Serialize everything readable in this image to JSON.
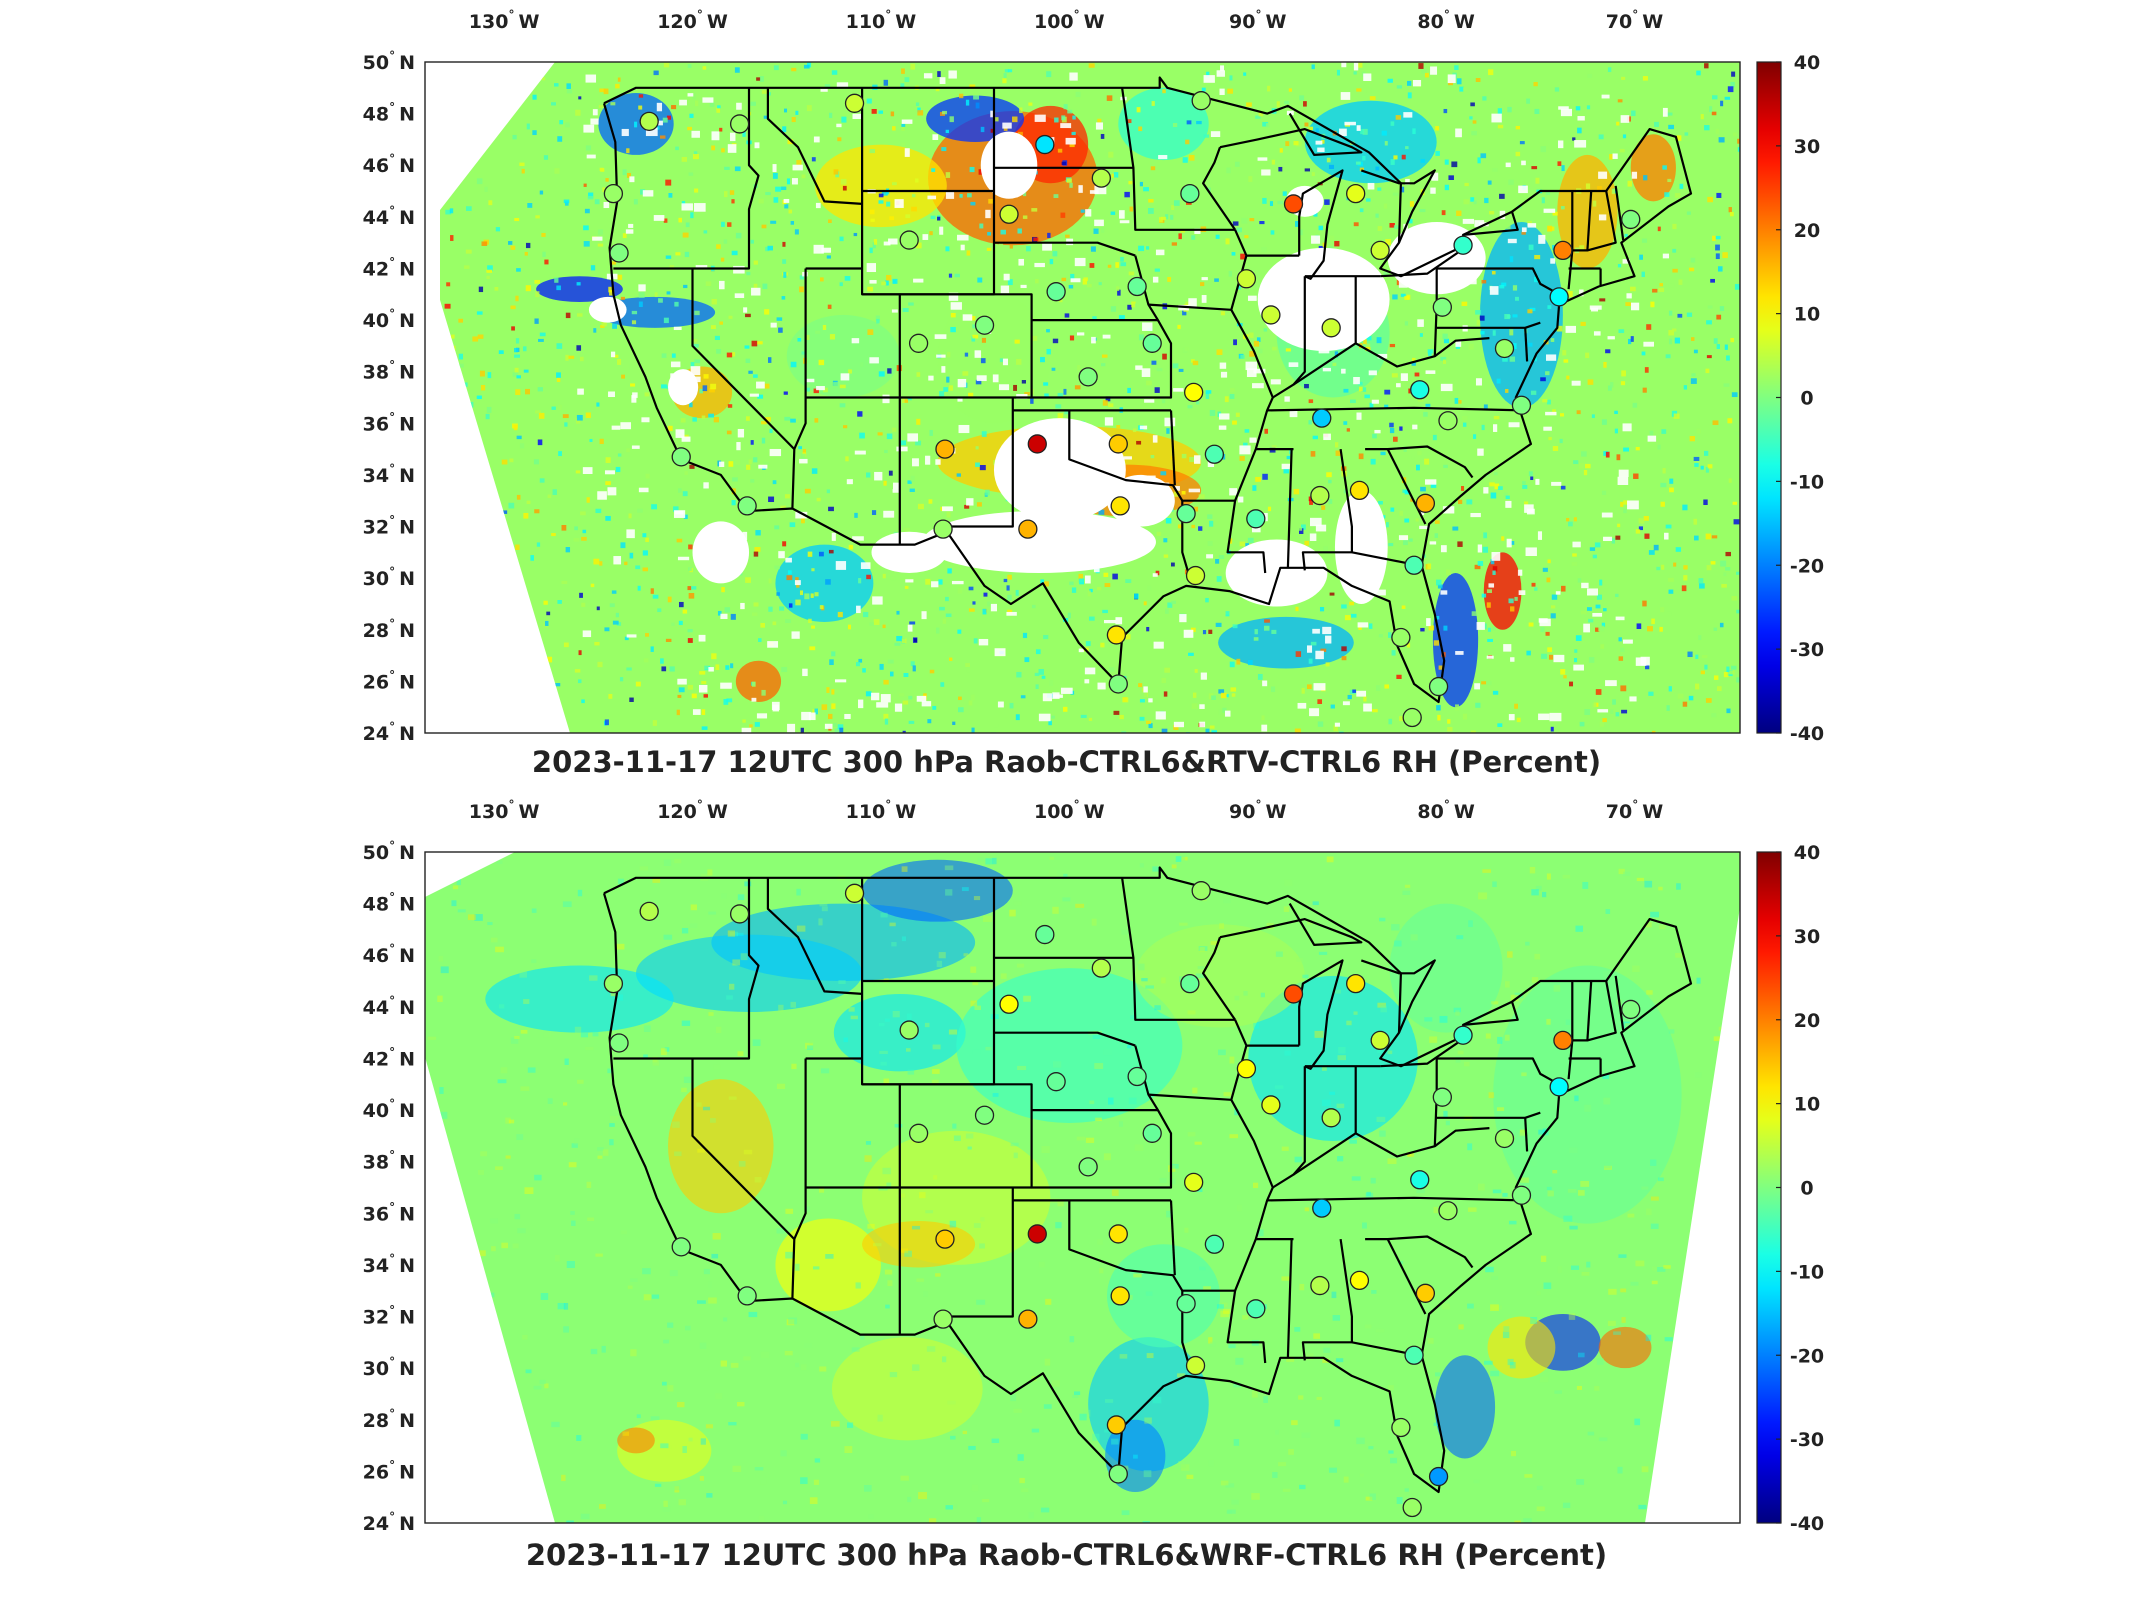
{
  "panels": [
    {
      "title": "2023-11-17 12UTC 300 hPa Raob-CTRL6&RTV-CTRL6 RH (Percent)",
      "field_style": "retrieval",
      "stations": [
        {
          "lon": -122.3,
          "lat": 47.7,
          "v": 4
        },
        {
          "lon": -117.5,
          "lat": 47.6,
          "v": 2
        },
        {
          "lon": -111.4,
          "lat": 48.4,
          "v": 6
        },
        {
          "lon": -101.3,
          "lat": 46.8,
          "v": -12
        },
        {
          "lon": -124.2,
          "lat": 44.9,
          "v": 2
        },
        {
          "lon": -123.9,
          "lat": 42.6,
          "v": 0
        },
        {
          "lon": -108.5,
          "lat": 43.1,
          "v": 2
        },
        {
          "lon": -103.2,
          "lat": 44.1,
          "v": 6
        },
        {
          "lon": -98.3,
          "lat": 45.5,
          "v": 4
        },
        {
          "lon": -93.6,
          "lat": 44.9,
          "v": -2
        },
        {
          "lon": -88.1,
          "lat": 44.5,
          "v": 24
        },
        {
          "lon": -84.8,
          "lat": 44.9,
          "v": 8
        },
        {
          "lon": -83.5,
          "lat": 42.7,
          "v": 6
        },
        {
          "lon": -79.1,
          "lat": 42.9,
          "v": -6
        },
        {
          "lon": -73.8,
          "lat": 42.7,
          "v": 20
        },
        {
          "lon": -70.2,
          "lat": 43.9,
          "v": 0
        },
        {
          "lon": -74.0,
          "lat": 40.9,
          "v": -10
        },
        {
          "lon": -100.7,
          "lat": 41.1,
          "v": -2
        },
        {
          "lon": -96.4,
          "lat": 41.3,
          "v": -2
        },
        {
          "lon": -90.6,
          "lat": 41.6,
          "v": 6
        },
        {
          "lon": -89.3,
          "lat": 40.2,
          "v": 6
        },
        {
          "lon": -86.1,
          "lat": 39.7,
          "v": 6
        },
        {
          "lon": -80.2,
          "lat": 40.5,
          "v": 0
        },
        {
          "lon": -76.9,
          "lat": 38.9,
          "v": 2
        },
        {
          "lon": -108.0,
          "lat": 39.1,
          "v": 2
        },
        {
          "lon": -104.5,
          "lat": 39.8,
          "v": 0
        },
        {
          "lon": -95.6,
          "lat": 39.1,
          "v": -2
        },
        {
          "lon": -99.0,
          "lat": 37.8,
          "v": 0
        },
        {
          "lon": -93.4,
          "lat": 37.2,
          "v": 10
        },
        {
          "lon": -86.6,
          "lat": 36.2,
          "v": -14
        },
        {
          "lon": -81.4,
          "lat": 37.3,
          "v": -8
        },
        {
          "lon": -79.9,
          "lat": 36.1,
          "v": 2
        },
        {
          "lon": -76.0,
          "lat": 36.7,
          "v": 0
        },
        {
          "lon": -106.6,
          "lat": 35.0,
          "v": 16
        },
        {
          "lon": -101.7,
          "lat": 35.2,
          "v": 34
        },
        {
          "lon": -97.4,
          "lat": 35.2,
          "v": 14
        },
        {
          "lon": -92.3,
          "lat": 34.8,
          "v": -4
        },
        {
          "lon": -86.7,
          "lat": 33.2,
          "v": 4
        },
        {
          "lon": -84.6,
          "lat": 33.4,
          "v": 12
        },
        {
          "lon": -81.1,
          "lat": 32.9,
          "v": 16
        },
        {
          "lon": -117.1,
          "lat": 32.8,
          "v": 0
        },
        {
          "lon": -120.6,
          "lat": 34.7,
          "v": 0
        },
        {
          "lon": -106.7,
          "lat": 31.9,
          "v": 2
        },
        {
          "lon": -102.2,
          "lat": 31.9,
          "v": 16
        },
        {
          "lon": -97.3,
          "lat": 32.8,
          "v": 12
        },
        {
          "lon": -93.8,
          "lat": 32.5,
          "v": -2
        },
        {
          "lon": -90.1,
          "lat": 32.3,
          "v": -4
        },
        {
          "lon": -93.3,
          "lat": 30.1,
          "v": 6
        },
        {
          "lon": -97.5,
          "lat": 27.8,
          "v": 12
        },
        {
          "lon": -97.4,
          "lat": 25.9,
          "v": 0
        },
        {
          "lon": -81.7,
          "lat": 30.5,
          "v": -4
        },
        {
          "lon": -82.4,
          "lat": 27.7,
          "v": 2
        },
        {
          "lon": -80.4,
          "lat": 25.8,
          "v": 0
        },
        {
          "lon": -81.8,
          "lat": 24.6,
          "v": 2
        },
        {
          "lon": -93.0,
          "lat": 48.5,
          "v": 2
        }
      ]
    },
    {
      "title": "2023-11-17 12UTC 300 hPa Raob-CTRL6&WRF-CTRL6 RH (Percent)",
      "field_style": "model",
      "stations": [
        {
          "lon": -122.3,
          "lat": 47.7,
          "v": 4
        },
        {
          "lon": -117.5,
          "lat": 47.6,
          "v": 2
        },
        {
          "lon": -111.4,
          "lat": 48.4,
          "v": 6
        },
        {
          "lon": -101.3,
          "lat": 46.8,
          "v": -2
        },
        {
          "lon": -124.2,
          "lat": 44.9,
          "v": 2
        },
        {
          "lon": -123.9,
          "lat": 42.6,
          "v": 0
        },
        {
          "lon": -108.5,
          "lat": 43.1,
          "v": 2
        },
        {
          "lon": -103.2,
          "lat": 44.1,
          "v": 10
        },
        {
          "lon": -98.3,
          "lat": 45.5,
          "v": 4
        },
        {
          "lon": -93.6,
          "lat": 44.9,
          "v": -2
        },
        {
          "lon": -88.1,
          "lat": 44.5,
          "v": 24
        },
        {
          "lon": -84.8,
          "lat": 44.9,
          "v": 12
        },
        {
          "lon": -83.5,
          "lat": 42.7,
          "v": 6
        },
        {
          "lon": -79.1,
          "lat": 42.9,
          "v": -6
        },
        {
          "lon": -73.8,
          "lat": 42.7,
          "v": 20
        },
        {
          "lon": -70.2,
          "lat": 43.9,
          "v": 0
        },
        {
          "lon": -74.0,
          "lat": 40.9,
          "v": -10
        },
        {
          "lon": -100.7,
          "lat": 41.1,
          "v": -2
        },
        {
          "lon": -96.4,
          "lat": 41.3,
          "v": -2
        },
        {
          "lon": -90.6,
          "lat": 41.6,
          "v": 10
        },
        {
          "lon": -89.3,
          "lat": 40.2,
          "v": 8
        },
        {
          "lon": -86.1,
          "lat": 39.7,
          "v": 4
        },
        {
          "lon": -80.2,
          "lat": 40.5,
          "v": 0
        },
        {
          "lon": -76.9,
          "lat": 38.9,
          "v": 2
        },
        {
          "lon": -108.0,
          "lat": 39.1,
          "v": 2
        },
        {
          "lon": -104.5,
          "lat": 39.8,
          "v": 0
        },
        {
          "lon": -95.6,
          "lat": 39.1,
          "v": -2
        },
        {
          "lon": -99.0,
          "lat": 37.8,
          "v": 0
        },
        {
          "lon": -93.4,
          "lat": 37.2,
          "v": 8
        },
        {
          "lon": -86.6,
          "lat": 36.2,
          "v": -14
        },
        {
          "lon": -81.4,
          "lat": 37.3,
          "v": -8
        },
        {
          "lon": -79.9,
          "lat": 36.1,
          "v": 2
        },
        {
          "lon": -76.0,
          "lat": 36.7,
          "v": 0
        },
        {
          "lon": -106.6,
          "lat": 35.0,
          "v": 14
        },
        {
          "lon": -101.7,
          "lat": 35.2,
          "v": 34
        },
        {
          "lon": -97.4,
          "lat": 35.2,
          "v": 12
        },
        {
          "lon": -92.3,
          "lat": 34.8,
          "v": -4
        },
        {
          "lon": -86.7,
          "lat": 33.2,
          "v": 4
        },
        {
          "lon": -84.6,
          "lat": 33.4,
          "v": 10
        },
        {
          "lon": -81.1,
          "lat": 32.9,
          "v": 14
        },
        {
          "lon": -117.1,
          "lat": 32.8,
          "v": 0
        },
        {
          "lon": -120.6,
          "lat": 34.7,
          "v": 0
        },
        {
          "lon": -106.7,
          "lat": 31.9,
          "v": 2
        },
        {
          "lon": -102.2,
          "lat": 31.9,
          "v": 16
        },
        {
          "lon": -97.3,
          "lat": 32.8,
          "v": 12
        },
        {
          "lon": -93.8,
          "lat": 32.5,
          "v": -2
        },
        {
          "lon": -90.1,
          "lat": 32.3,
          "v": -4
        },
        {
          "lon": -93.3,
          "lat": 30.1,
          "v": 6
        },
        {
          "lon": -97.5,
          "lat": 27.8,
          "v": 14
        },
        {
          "lon": -97.4,
          "lat": 25.9,
          "v": 0
        },
        {
          "lon": -81.7,
          "lat": 30.5,
          "v": -4
        },
        {
          "lon": -82.4,
          "lat": 27.7,
          "v": 2
        },
        {
          "lon": -80.4,
          "lat": 25.8,
          "v": -18
        },
        {
          "lon": -81.8,
          "lat": 24.6,
          "v": 2
        },
        {
          "lon": -93.0,
          "lat": 48.5,
          "v": 2
        }
      ]
    }
  ],
  "map": {
    "lon_ticks": [
      {
        "value": -130,
        "label": "130",
        "dir": "W"
      },
      {
        "value": -120,
        "label": "120",
        "dir": "W"
      },
      {
        "value": -110,
        "label": "110",
        "dir": "W"
      },
      {
        "value": -100,
        "label": "100",
        "dir": "W"
      },
      {
        "value": -90,
        "label": "90",
        "dir": "W"
      },
      {
        "value": -80,
        "label": "80",
        "dir": "W"
      },
      {
        "value": -70,
        "label": "70",
        "dir": "W"
      }
    ],
    "lat_ticks": [
      {
        "value": 50,
        "label": "50",
        "dir": "N"
      },
      {
        "value": 48,
        "label": "48",
        "dir": "N"
      },
      {
        "value": 46,
        "label": "46",
        "dir": "N"
      },
      {
        "value": 44,
        "label": "44",
        "dir": "N"
      },
      {
        "value": 42,
        "label": "42",
        "dir": "N"
      },
      {
        "value": 40,
        "label": "40",
        "dir": "N"
      },
      {
        "value": 38,
        "label": "38",
        "dir": "N"
      },
      {
        "value": 36,
        "label": "36",
        "dir": "N"
      },
      {
        "value": 34,
        "label": "34",
        "dir": "N"
      },
      {
        "value": 32,
        "label": "32",
        "dir": "N"
      },
      {
        "value": 30,
        "label": "30",
        "dir": "N"
      },
      {
        "value": 28,
        "label": "28",
        "dir": "N"
      },
      {
        "value": 26,
        "label": "26",
        "dir": "N"
      },
      {
        "value": 24,
        "label": "24",
        "dir": "N"
      }
    ],
    "degree_symbol": "°",
    "colorbar": {
      "min": -40,
      "max": 40,
      "ticks": [
        "40",
        "30",
        "20",
        "10",
        "0",
        "-10",
        "-20",
        "-30",
        "-40"
      ],
      "colormap": "jet"
    }
  }
}
